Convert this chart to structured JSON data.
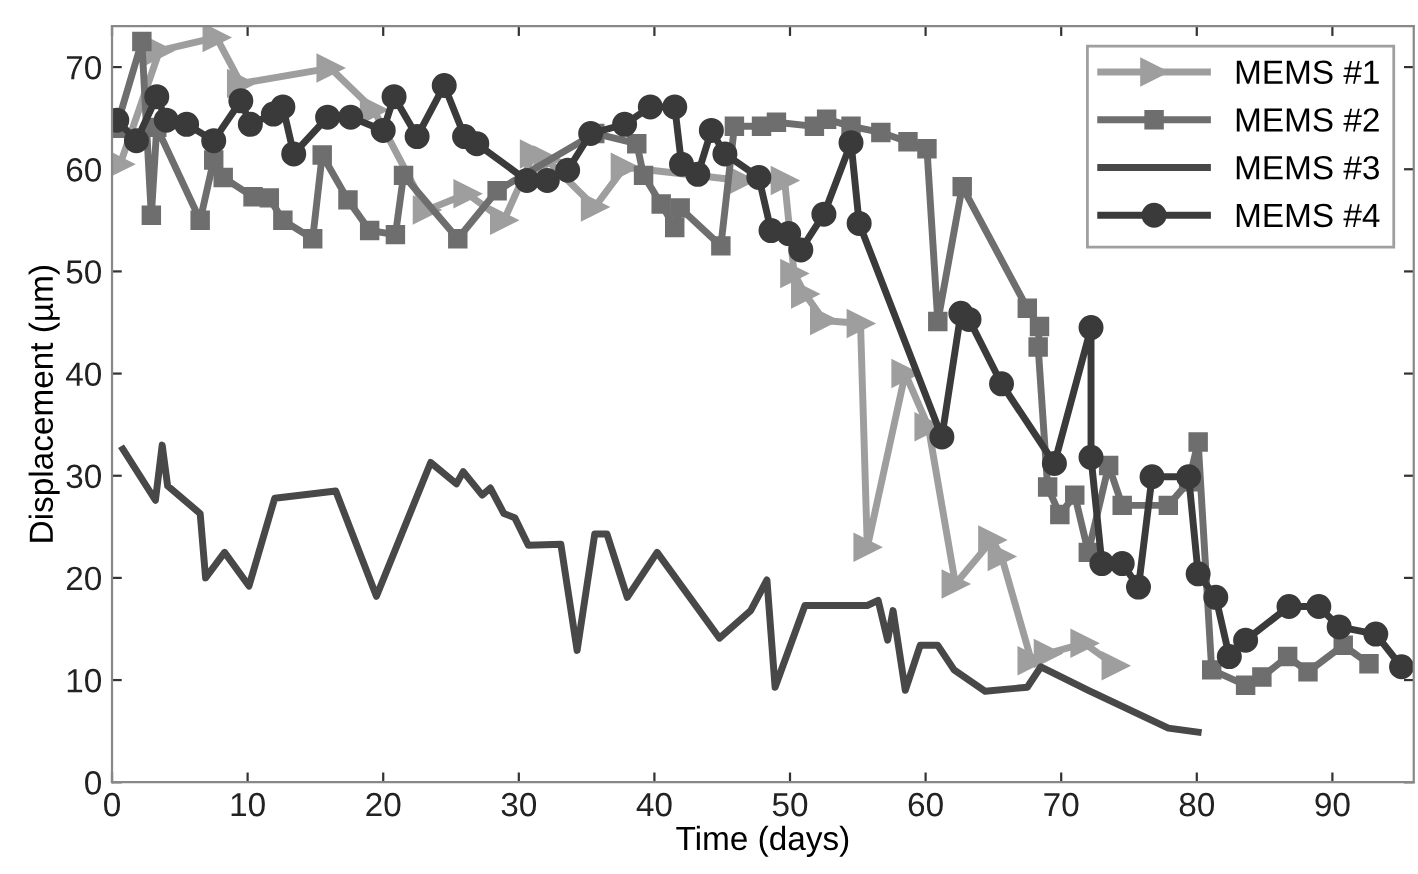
{
  "chart_data": {
    "type": "line",
    "xlabel": "Time (days)",
    "ylabel": "Displacement (µm)",
    "xlim": [
      0,
      96
    ],
    "ylim": [
      0,
      74
    ],
    "xticks": [
      0,
      10,
      20,
      30,
      40,
      50,
      60,
      70,
      80,
      90
    ],
    "yticks": [
      0,
      10,
      20,
      30,
      40,
      50,
      60,
      70
    ],
    "grid": false,
    "legend": "top right",
    "line_style": "solid",
    "series": [
      {
        "name": "MEMS #1",
        "color": "#9e9e9e",
        "marker": "triangle",
        "x": [
          0.6,
          3.5,
          7.7,
          9.5,
          16.1,
          19.3,
          23.2,
          26.2,
          28.9,
          31.1,
          32.1,
          35.6,
          37.8,
          46.4,
          49.6,
          50.3,
          51.1,
          52.5,
          55.2,
          55.7,
          58.5,
          60.2,
          62.2,
          64.9,
          65.6,
          67.8,
          69.0,
          71.7,
          74.0
        ],
        "values": [
          60.5,
          71.6,
          72.9,
          68.4,
          69.9,
          65.8,
          56,
          57.6,
          55,
          61.5,
          60.9,
          56.3,
          60.2,
          58.9,
          58.9,
          49.8,
          47.8,
          45.2,
          44.9,
          23.0,
          40,
          34.8,
          19.4,
          23.7,
          22.1,
          11.9,
          12.6,
          13.6,
          11.4
        ]
      },
      {
        "name": "MEMS #2",
        "color": "#6e6e6e",
        "marker": "square",
        "x": [
          0.3,
          2.2,
          2.9,
          3.3,
          6.5,
          7.5,
          8.2,
          10.4,
          11.6,
          12.6,
          14.8,
          15.5,
          17.4,
          19.0,
          20.9,
          21.5,
          25.5,
          28.4,
          35.6,
          38.7,
          39.2,
          40.5,
          41.5,
          41.9,
          44.9,
          45.9,
          47.9,
          49.0,
          51.8,
          52.7,
          54.5,
          56.7,
          58.7,
          60.1,
          60.9,
          62.7,
          67.5,
          68.4,
          68.3,
          69.0,
          69.9,
          71.0,
          72.0,
          73.5,
          74.5,
          77.9,
          79.4,
          80.1,
          81.1,
          83.6,
          84.8,
          86.7,
          88.2,
          90.8,
          92.7
        ],
        "values": [
          64,
          72.5,
          55.5,
          64.1,
          55,
          60.9,
          59.2,
          57.3,
          57.2,
          55,
          53.2,
          61.4,
          57,
          54,
          53.6,
          59.4,
          53.2,
          57.9,
          63.5,
          62.5,
          59.4,
          56.6,
          54.3,
          56.2,
          52.5,
          64.2,
          64.2,
          64.6,
          64.2,
          64.9,
          64.2,
          63.6,
          62.7,
          62,
          45.1,
          58.3,
          46.4,
          44.6,
          42.6,
          28.9,
          26.2,
          28.1,
          22.5,
          31.0,
          27.1,
          27.1,
          29.4,
          33.3,
          11.0,
          9.5,
          10.3,
          12.3,
          10.8,
          13.4,
          11.6
        ]
      },
      {
        "name": "MEMS #3",
        "color": "#484848",
        "marker": "none",
        "x": [
          0.8,
          3.2,
          3.7,
          4.1,
          6.5,
          6.9,
          8.3,
          10.1,
          12.0,
          16.5,
          19.5,
          23.5,
          25.4,
          25.9,
          27.3,
          27.9,
          28.9,
          29.7,
          30.7,
          33.1,
          34.3,
          35.6,
          36.5,
          38.0,
          40.2,
          44.8,
          47.1,
          48.3,
          48.9,
          51.1,
          55.7,
          56.5,
          57.2,
          57.6,
          58.5,
          59.6,
          60.9,
          62.1,
          64.4,
          67.5,
          68.5,
          72.0,
          77.9,
          80.1
        ],
        "values": [
          32.6,
          27.6,
          33,
          29,
          26.3,
          20,
          22.5,
          19.2,
          27.8,
          28.5,
          18.2,
          31.3,
          29.2,
          30.4,
          28.1,
          28.8,
          26.3,
          25.9,
          23.2,
          23.3,
          12.9,
          24.3,
          24.3,
          18.1,
          22.5,
          14.1,
          16.8,
          19.8,
          9.3,
          17.3,
          17.3,
          17.8,
          13.9,
          16.8,
          9.0,
          13.4,
          13.4,
          11.0,
          8.9,
          9.3,
          11.3,
          9.0,
          5.3,
          4.9
        ]
      },
      {
        "name": "MEMS #4",
        "color": "#3a3a3a",
        "marker": "circle",
        "x": [
          0.35,
          1.8,
          3.3,
          4.0,
          5.5,
          7.5,
          9.5,
          10.2,
          11.9,
          12.6,
          13.4,
          15.9,
          17.6,
          20.0,
          20.8,
          22.5,
          24.5,
          26.0,
          26.9,
          30.6,
          32.1,
          33.6,
          35.3,
          37.8,
          39.7,
          41.5,
          42.0,
          43.2,
          44.2,
          45.2,
          47.7,
          48.6,
          49.9,
          50.8,
          52.5,
          54.5,
          55.1,
          61.2,
          62.6,
          63.2,
          65.6,
          69.5,
          72.2,
          72.2,
          73.0,
          74.5,
          75.7,
          76.7,
          79.4,
          80.1,
          81.4,
          82.4,
          83.6,
          86.8,
          89.0,
          90.5,
          93.2,
          95.1
        ],
        "values": [
          64.8,
          62.8,
          67.1,
          64.8,
          64.4,
          62.8,
          66.7,
          64.4,
          65.4,
          66.1,
          61.5,
          65.1,
          65.1,
          63.8,
          67.1,
          63.2,
          68.2,
          63.2,
          62.5,
          58.9,
          58.9,
          59.9,
          63.5,
          64.4,
          66.1,
          66.1,
          60.5,
          59.5,
          63.8,
          61.5,
          59.2,
          54,
          53.7,
          52.1,
          55.6,
          62.6,
          54.7,
          33.8,
          45.9,
          45.3,
          39,
          31.2,
          44.5,
          31.8,
          21.4,
          21.4,
          19.1,
          29.9,
          29.9,
          20.4,
          18.1,
          12.3,
          13.9,
          17.2,
          17.2,
          15.2,
          14.5,
          11.3
        ]
      }
    ]
  }
}
